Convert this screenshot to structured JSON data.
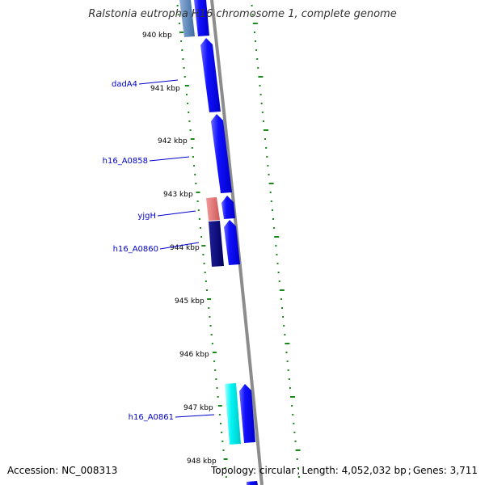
{
  "title": "Ralstonia eutropha H16 chromosome 1, complete genome",
  "footer": {
    "accession_label": "Accession:",
    "accession": "NC_008313",
    "topology_label": "Topology:",
    "topology": "circular",
    "length_label": "Length:",
    "length": "4,052,032 bp",
    "genes_label": "Genes:",
    "genes": "3,711"
  },
  "ticks": [
    {
      "label": "940 kbp"
    },
    {
      "label": "941 kbp"
    },
    {
      "label": "942 kbp"
    },
    {
      "label": "943 kbp"
    },
    {
      "label": "944 kbp"
    },
    {
      "label": "945 kbp"
    },
    {
      "label": "946 kbp"
    },
    {
      "label": "947 kbp"
    },
    {
      "label": "948 kbp"
    }
  ],
  "gene_labels": [
    {
      "name": "dadA4"
    },
    {
      "name": "h16_A0858"
    },
    {
      "name": "yjgH"
    },
    {
      "name": "h16_A0860"
    },
    {
      "name": "h16_A0861"
    }
  ],
  "colors": {
    "forward_gene": "#0000ee",
    "reverse_gene_dark": "#000080",
    "rna_gene": "#e06666",
    "cyan_gene": "#00eeee",
    "steel_gene": "#4f7fb5",
    "backbone": "#888888",
    "dots": "#1a8a1a",
    "label": "#0000cc"
  }
}
